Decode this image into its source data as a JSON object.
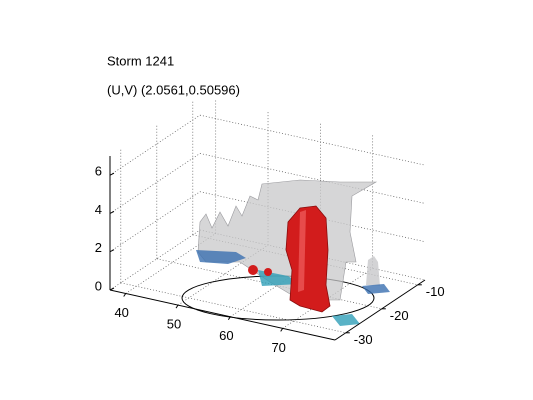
{
  "chart_data": {
    "type": "isosurface3d",
    "title": "Storm 1241",
    "subtitle": "(U,V) (2.0561,0.50596)",
    "xlim": [
      37,
      80
    ],
    "xticks": [
      40,
      50,
      60,
      70
    ],
    "ylim": [
      -33,
      -8
    ],
    "yticks": [
      -30,
      -20,
      -10
    ],
    "zlim": [
      0,
      7
    ],
    "zticks": [
      0,
      2,
      4,
      6
    ],
    "grid": true
  }
}
